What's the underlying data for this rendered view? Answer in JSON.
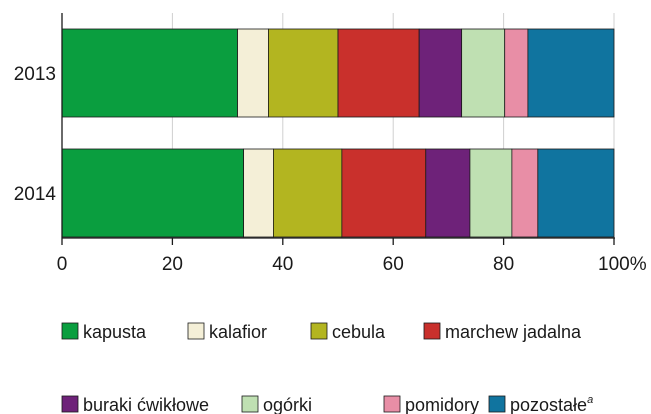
{
  "chart_data": {
    "type": "bar",
    "stacked": true,
    "orientation": "horizontal",
    "categories": [
      "2013",
      "2014"
    ],
    "series": [
      {
        "name": "kapusta",
        "color": "#0a9e3f",
        "values": [
          31.8,
          32.9
        ]
      },
      {
        "name": "kalafior",
        "color": "#f4efd7",
        "values": [
          5.6,
          5.4
        ]
      },
      {
        "name": "cebula",
        "color": "#b3b520",
        "values": [
          12.6,
          12.4
        ]
      },
      {
        "name": "marchew jadalna",
        "color": "#c9302c",
        "values": [
          14.7,
          15.2
        ]
      },
      {
        "name": "buraki ćwikłowe",
        "color": "#6e2279",
        "values": [
          7.7,
          8.0
        ]
      },
      {
        "name": "ogórki",
        "color": "#bfe0b2",
        "values": [
          7.8,
          7.6
        ]
      },
      {
        "name": "pomidory",
        "color": "#e88ea6",
        "values": [
          4.2,
          4.7
        ]
      },
      {
        "name": "pozostałe",
        "superscript": "a",
        "color": "#10749f",
        "values": [
          15.6,
          13.8
        ]
      }
    ],
    "xlim": [
      0,
      100
    ],
    "x_ticks": [
      "0",
      "20",
      "40",
      "60",
      "80",
      "100%"
    ],
    "grid": true,
    "legend_position": "bottom"
  }
}
